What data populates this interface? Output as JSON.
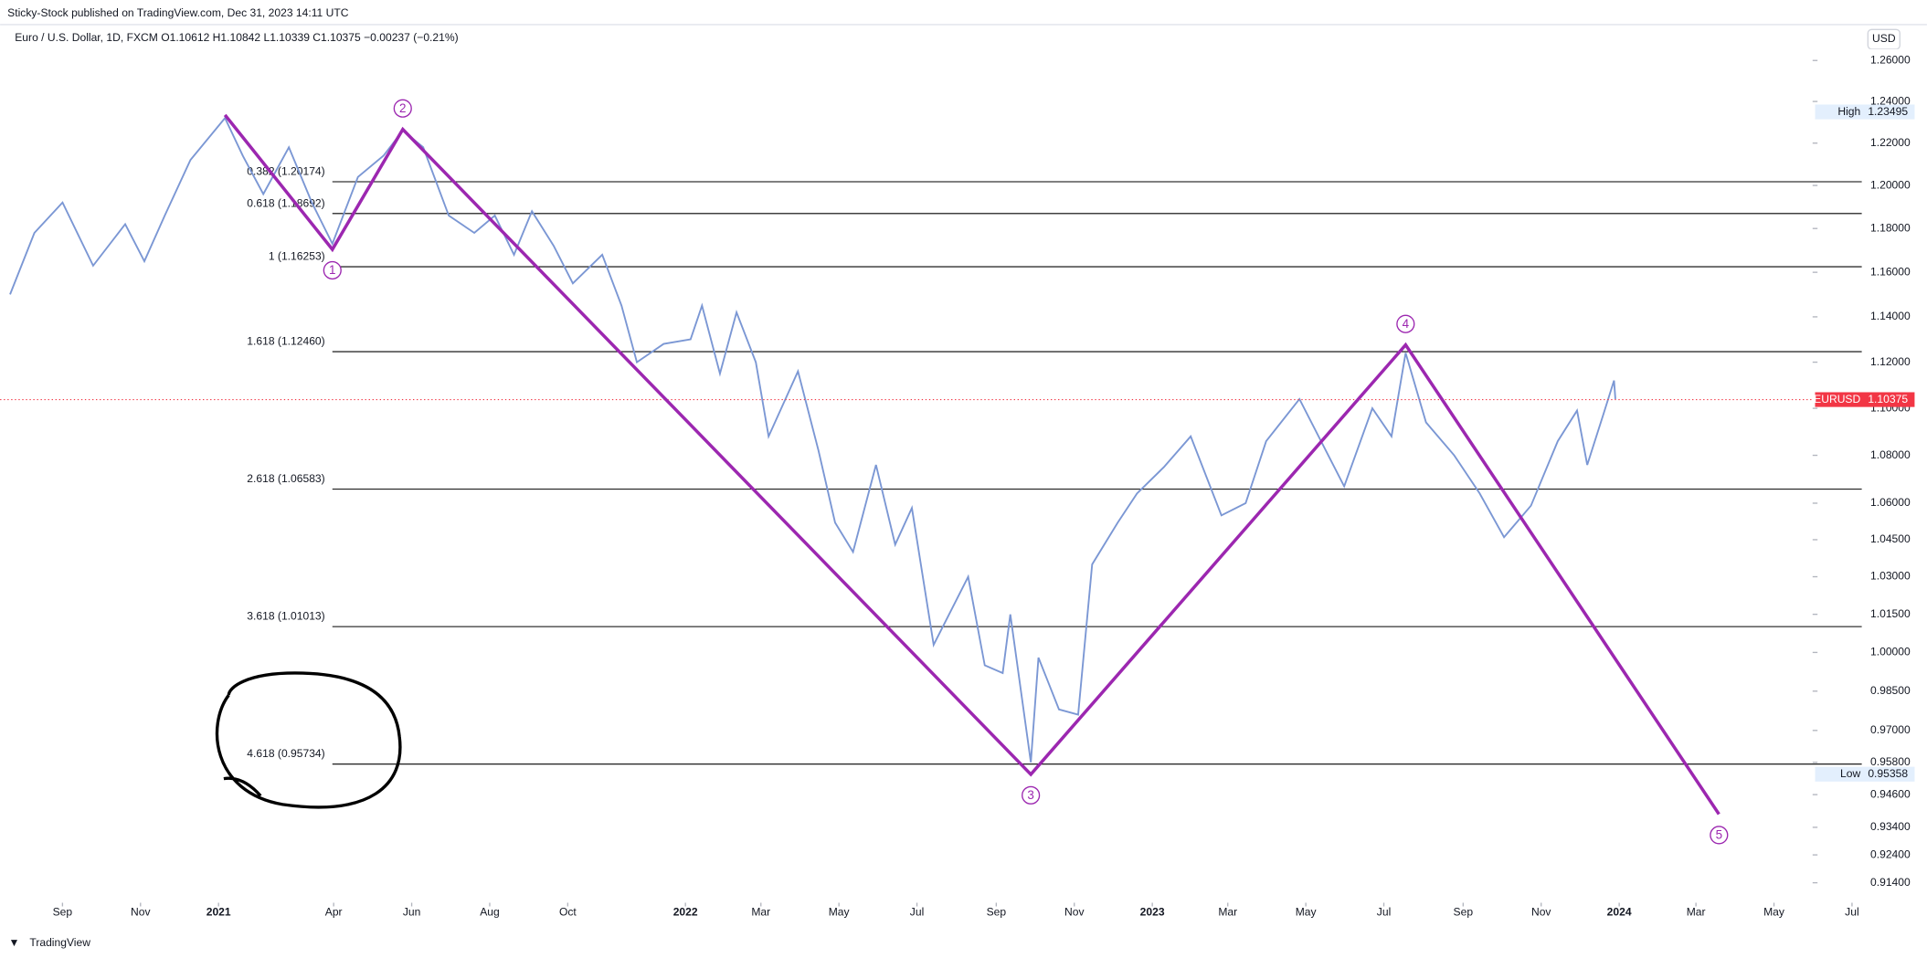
{
  "header": {
    "publisher": "Sticky-Stock published on TradingView.com, Dec 31, 2023 14:11 UTC",
    "symbol": "Euro / U.S. Dollar, 1D, FXCM  O1.10612 H1.10842 L1.10339 C1.10375 −0.00237 (−0.21%)",
    "currency": "USD"
  },
  "footer": {
    "brand": "TradingView"
  },
  "chart_data": {
    "type": "line",
    "log_scale": true,
    "color": "#7b97d4",
    "x": [
      "2020-07-22",
      "2020-08-10",
      "2020-09-01",
      "2020-09-25",
      "2020-10-20",
      "2020-11-04",
      "2020-11-20",
      "2020-12-10",
      "2021-01-06",
      "2021-01-20",
      "2021-02-05",
      "2021-02-25",
      "2021-03-15",
      "2021-03-31",
      "2021-04-20",
      "2021-05-10",
      "2021-05-25",
      "2021-06-10",
      "2021-06-30",
      "2021-07-20",
      "2021-08-05",
      "2021-08-20",
      "2021-09-03",
      "2021-09-20",
      "2021-10-05",
      "2021-10-28",
      "2021-11-12",
      "2021-11-24",
      "2021-12-15",
      "2022-01-05",
      "2022-01-14",
      "2022-01-28",
      "2022-02-10",
      "2022-02-25",
      "2022-03-07",
      "2022-03-30",
      "2022-04-15",
      "2022-04-28",
      "2022-05-12",
      "2022-05-30",
      "2022-06-14",
      "2022-06-27",
      "2022-07-14",
      "2022-08-10",
      "2022-08-23",
      "2022-09-06",
      "2022-09-12",
      "2022-09-28",
      "2022-10-04",
      "2022-10-20",
      "2022-11-04",
      "2022-11-15",
      "2022-12-05",
      "2022-12-20",
      "2023-01-10",
      "2023-01-31",
      "2023-02-24",
      "2023-03-15",
      "2023-03-31",
      "2023-04-26",
      "2023-05-31",
      "2023-06-22",
      "2023-07-07",
      "2023-07-18",
      "2023-08-03",
      "2023-08-25",
      "2023-09-14",
      "2023-10-03",
      "2023-10-24",
      "2023-11-14",
      "2023-11-29",
      "2023-12-07",
      "2023-12-20",
      "2023-12-28",
      "2023-12-29"
    ],
    "values": [
      1.15,
      1.178,
      1.192,
      1.163,
      1.182,
      1.165,
      1.186,
      1.212,
      1.232,
      1.214,
      1.196,
      1.218,
      1.192,
      1.173,
      1.204,
      1.214,
      1.226,
      1.218,
      1.186,
      1.178,
      1.186,
      1.168,
      1.188,
      1.172,
      1.155,
      1.168,
      1.145,
      1.12,
      1.128,
      1.13,
      1.145,
      1.115,
      1.142,
      1.12,
      1.088,
      1.116,
      1.082,
      1.052,
      1.04,
      1.076,
      1.043,
      1.058,
      1.003,
      1.03,
      0.995,
      0.992,
      1.015,
      0.958,
      0.998,
      0.978,
      0.976,
      1.035,
      1.052,
      1.064,
      1.075,
      1.088,
      1.055,
      1.06,
      1.086,
      1.104,
      1.067,
      1.1,
      1.088,
      1.124,
      1.094,
      1.08,
      1.064,
      1.046,
      1.059,
      1.086,
      1.099,
      1.076,
      1.098,
      1.112,
      1.104
    ],
    "xlim": [
      "2020-07-20",
      "2024-07-24"
    ],
    "xticks": [
      {
        "value": "2020-09-01",
        "label": "Sep"
      },
      {
        "value": "2020-11-01",
        "label": "Nov"
      },
      {
        "value": "2021-01-01",
        "label": "2021"
      },
      {
        "value": "2021-04-01",
        "label": "Apr"
      },
      {
        "value": "2021-06-01",
        "label": "Jun"
      },
      {
        "value": "2021-08-01",
        "label": "Aug"
      },
      {
        "value": "2021-10-01",
        "label": "Oct"
      },
      {
        "value": "2022-01-01",
        "label": "2022"
      },
      {
        "value": "2022-03-01",
        "label": "Mar"
      },
      {
        "value": "2022-05-01",
        "label": "May"
      },
      {
        "value": "2022-07-01",
        "label": "Jul"
      },
      {
        "value": "2022-09-01",
        "label": "Sep"
      },
      {
        "value": "2022-11-01",
        "label": "Nov"
      },
      {
        "value": "2023-01-01",
        "label": "2023"
      },
      {
        "value": "2023-03-01",
        "label": "Mar"
      },
      {
        "value": "2023-05-01",
        "label": "May"
      },
      {
        "value": "2023-07-01",
        "label": "Jul"
      },
      {
        "value": "2023-09-01",
        "label": "Sep"
      },
      {
        "value": "2023-11-01",
        "label": "Nov"
      },
      {
        "value": "2024-01-01",
        "label": "2024"
      },
      {
        "value": "2024-03-01",
        "label": "Mar"
      },
      {
        "value": "2024-05-01",
        "label": "May"
      },
      {
        "value": "2024-07-01",
        "label": "Jul"
      }
    ],
    "ylim": [
      0.9069,
      1.2656
    ],
    "yticks": [
      {
        "value": 1.26,
        "label": "1.26000"
      },
      {
        "value": 1.24,
        "label": "1.24000"
      },
      {
        "value": 1.22,
        "label": "1.22000"
      },
      {
        "value": 1.2,
        "label": "1.20000"
      },
      {
        "value": 1.18,
        "label": "1.18000"
      },
      {
        "value": 1.16,
        "label": "1.16000"
      },
      {
        "value": 1.14,
        "label": "1.14000"
      },
      {
        "value": 1.12,
        "label": "1.12000"
      },
      {
        "value": 1.1,
        "label": "1.10000"
      },
      {
        "value": 1.08,
        "label": "1.08000"
      },
      {
        "value": 1.06,
        "label": "1.06000"
      },
      {
        "value": 1.045,
        "label": "1.04500"
      },
      {
        "value": 1.03,
        "label": "1.03000"
      },
      {
        "value": 1.015,
        "label": "1.01500"
      },
      {
        "value": 1.0,
        "label": "1.00000"
      },
      {
        "value": 0.985,
        "label": "0.98500"
      },
      {
        "value": 0.97,
        "label": "0.97000"
      },
      {
        "value": 0.958,
        "label": "0.95800"
      },
      {
        "value": 0.946,
        "label": "0.94600"
      },
      {
        "value": 0.934,
        "label": "0.93400"
      },
      {
        "value": 0.924,
        "label": "0.92400"
      },
      {
        "value": 0.914,
        "label": "0.91400"
      }
    ],
    "fib_start": "2021-03-31",
    "fib_levels": [
      {
        "value": 1.20174,
        "label": "0.382 (1.20174)"
      },
      {
        "value": 1.18692,
        "label": "0.618 (1.18692)"
      },
      {
        "value": 1.16253,
        "label": "1 (1.16253)"
      },
      {
        "value": 1.1246,
        "label": "1.618 (1.12460)"
      },
      {
        "value": 1.06583,
        "label": "2.618 (1.06583)"
      },
      {
        "value": 1.01013,
        "label": "3.618 (1.01013)"
      },
      {
        "value": 0.95734,
        "label": "4.618 (0.95734)"
      }
    ],
    "waves": {
      "color": "#9c27b0",
      "x": [
        "2021-01-06",
        "2021-03-31",
        "2021-05-25",
        "2022-09-28",
        "2023-07-18",
        "2024-03-19"
      ],
      "values": [
        1.2335,
        1.1704,
        1.2266,
        0.9535,
        1.1276,
        0.9388
      ],
      "labels": [
        null,
        "1",
        "2",
        "3",
        "4",
        "5"
      ]
    },
    "last": {
      "name": "EURUSD",
      "value": 1.10375,
      "color": "#f23645"
    },
    "high": {
      "name": "High",
      "value": 1.23495,
      "label": "1.23495"
    },
    "low": {
      "name": "Low",
      "value": 0.95358,
      "label": "0.95358"
    }
  }
}
